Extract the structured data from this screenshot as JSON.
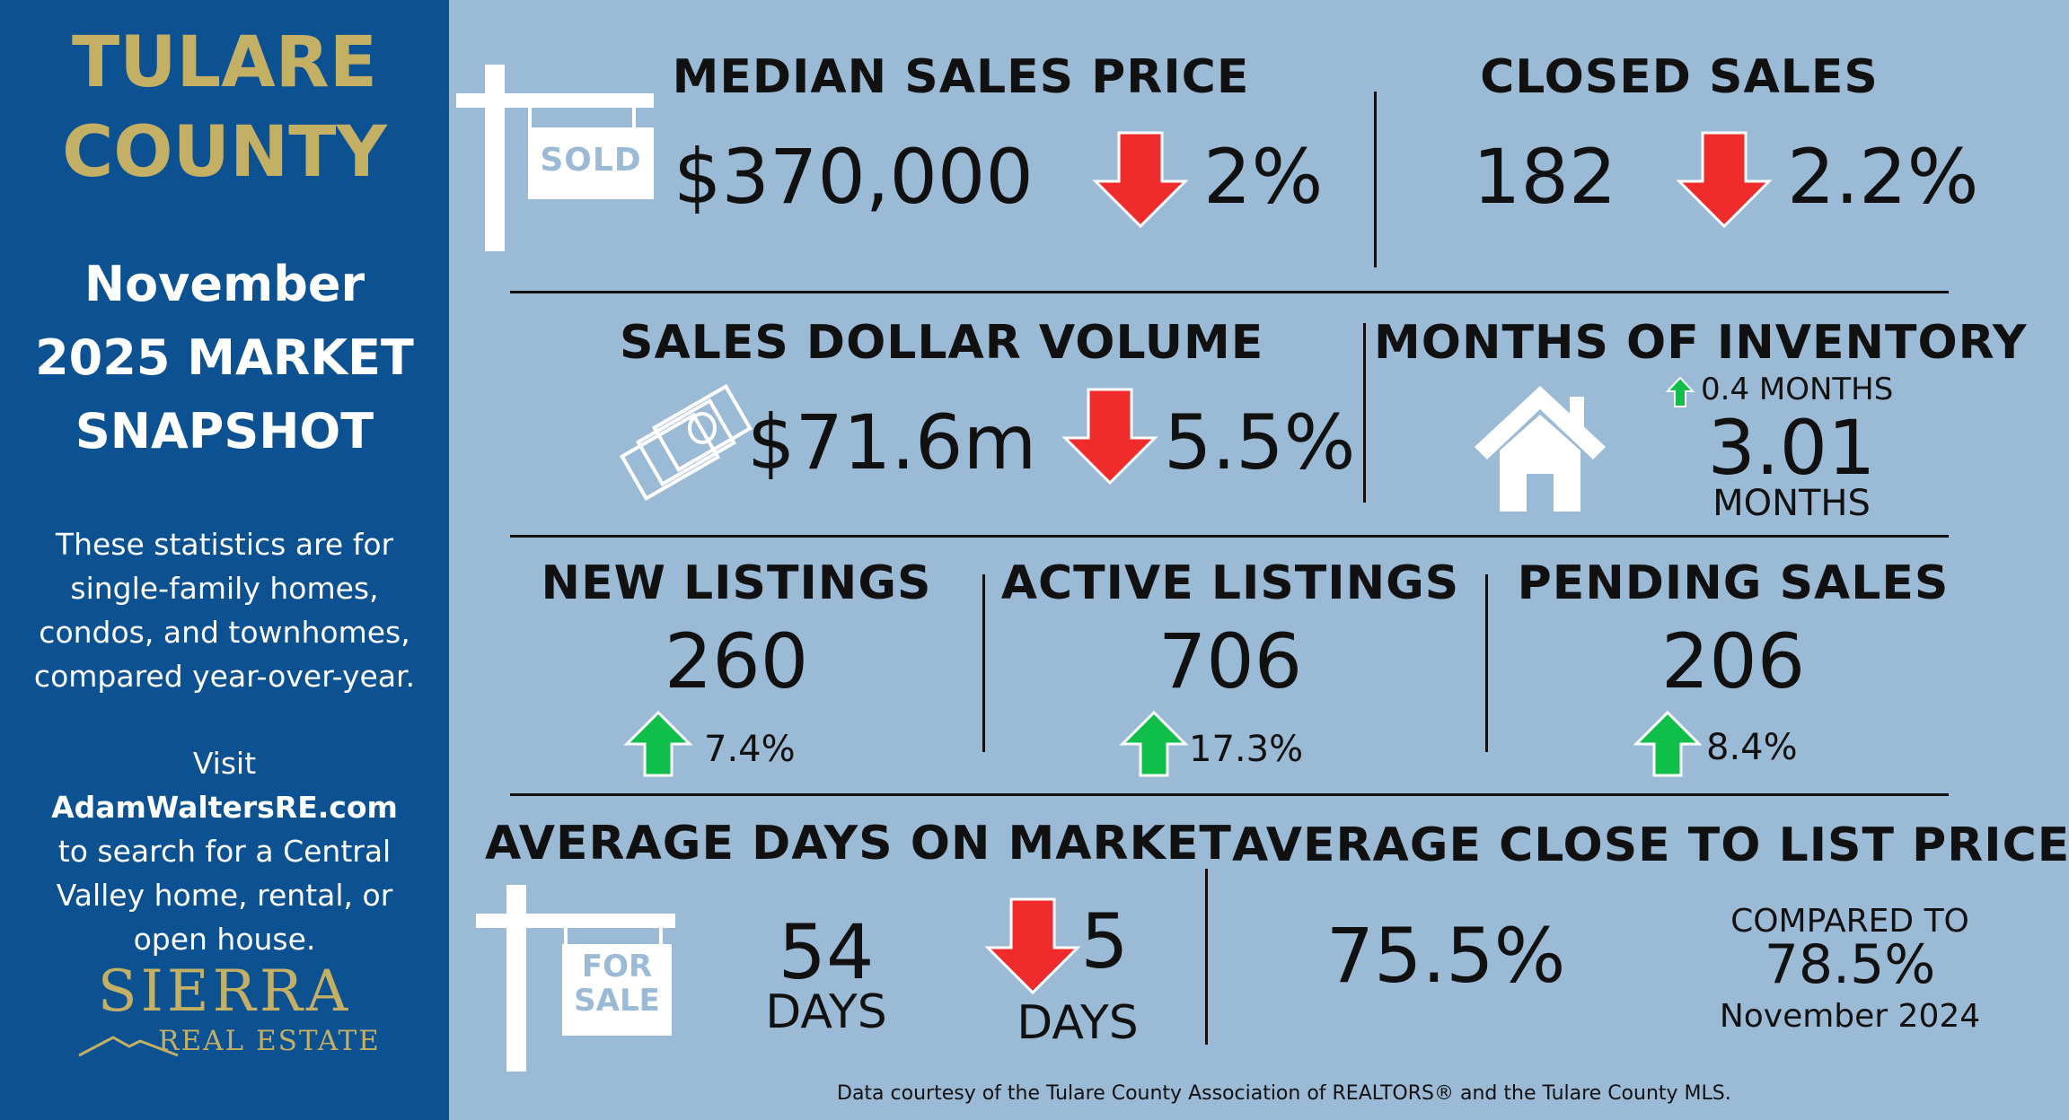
{
  "sidebar": {
    "county_line1": "TULARE",
    "county_line2": "COUNTY",
    "snapshot_line1": "November",
    "snapshot_line2": "2025 MARKET",
    "snapshot_line3": "SNAPSHOT",
    "blurb_lines": [
      "These statistics are for",
      "single-family homes,",
      "condos, and townhomes,",
      "compared year-over-year."
    ],
    "visit_prefix": "Visit ",
    "visit_site": "AdamWaltersRE.com",
    "visit_lines": [
      "to search for a Central",
      "Valley home, rental, or",
      "open house."
    ],
    "logo_name": "SIERRA",
    "logo_sub": "REAL ESTATE"
  },
  "median_price": {
    "title": "MEDIAN SALES PRICE",
    "value": "$370,000",
    "change": "2%",
    "direction": "down",
    "sign_text": "SOLD"
  },
  "closed_sales": {
    "title": "CLOSED SALES",
    "value": "182",
    "change": "2.2%",
    "direction": "down"
  },
  "dollar_volume": {
    "title": "SALES DOLLAR VOLUME",
    "value": "$71.6m",
    "change": "5.5%",
    "direction": "down"
  },
  "inventory": {
    "title": "MONTHS OF INVENTORY",
    "change": "0.4 MONTHS",
    "direction": "up",
    "value": "3.01",
    "unit": "MONTHS"
  },
  "new_listings": {
    "title": "NEW LISTINGS",
    "value": "260",
    "change": "7.4%",
    "direction": "up"
  },
  "active_listings": {
    "title": "ACTIVE LISTINGS",
    "value": "706",
    "change": "17.3%",
    "direction": "up"
  },
  "pending_sales": {
    "title": "PENDING SALES",
    "value": "206",
    "change": "8.4%",
    "direction": "up"
  },
  "days_on_market": {
    "title": "AVERAGE DAYS ON MARKET",
    "value": "54",
    "unit": "DAYS",
    "change": "5",
    "change_unit": "DAYS",
    "direction": "down",
    "sign_line1": "FOR",
    "sign_line2": "SALE"
  },
  "close_to_list": {
    "title": "AVERAGE CLOSE TO LIST PRICE",
    "value": "75.5%",
    "compare_label": "COMPARED TO",
    "compare_value": "78.5%",
    "compare_period": "November 2024"
  },
  "footer": "Data courtesy of the Tulare County Association of REALTORS® and the Tulare County MLS.",
  "colors": {
    "sidebar_bg": "#0c5192",
    "content_bg": "#9bbad6",
    "gold": "#c4b064",
    "down_arrow": "#ef2b2b",
    "up_arrow": "#0fbf4a"
  },
  "icons": [
    "sold-sign-icon",
    "money-stack-icon",
    "house-icon",
    "for-sale-sign-icon",
    "down-arrow-icon",
    "up-arrow-icon"
  ]
}
